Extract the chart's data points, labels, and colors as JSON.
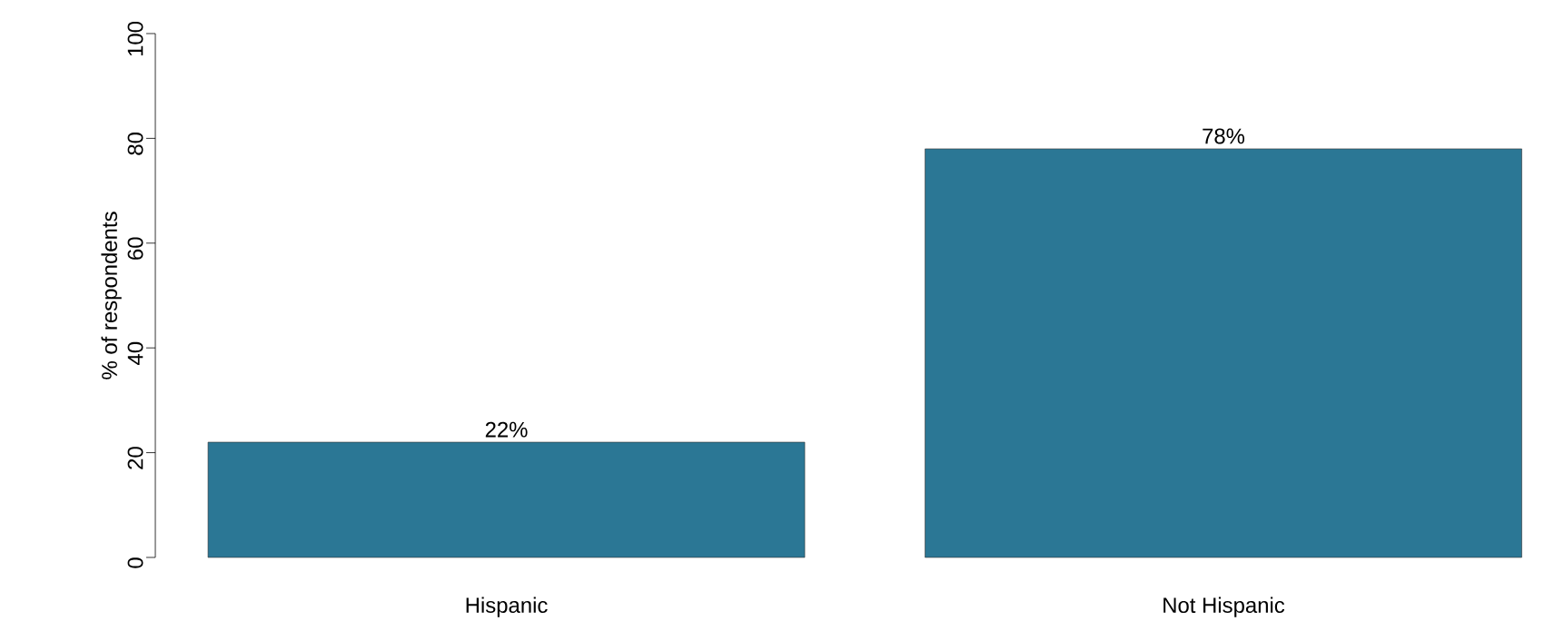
{
  "chart_data": {
    "type": "bar",
    "ylabel": "% of respondents",
    "categories": [
      "Hispanic",
      "Not Hispanic"
    ],
    "values": [
      22,
      78
    ],
    "value_labels": [
      "22%",
      "78%"
    ],
    "color": "#2b7795",
    "ylim": [
      0,
      100
    ],
    "yticks": [
      0,
      20,
      40,
      60,
      80,
      100
    ]
  }
}
